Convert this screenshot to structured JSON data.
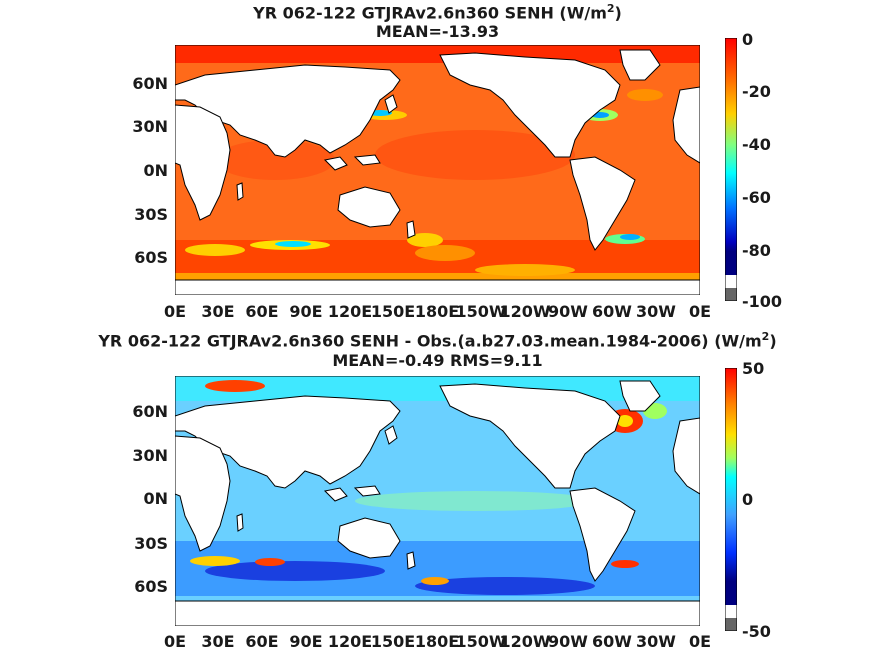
{
  "top": {
    "title_prefix": "YR 062-122 GTJRAv2.6n360  SENH (W/m",
    "title_sup": "2",
    "title_suffix": ")",
    "stat": "MEAN=-13.93",
    "colorbar_ticks": [
      "0",
      "-20",
      "-40",
      "-60",
      "-80",
      "-100"
    ]
  },
  "bottom": {
    "title_prefix": "YR 062-122 GTJRAv2.6n360 SENH - Obs.(a.b27.03.mean.1984-2006) (W/m",
    "title_sup": "2",
    "title_suffix": ")",
    "stat": "MEAN=-0.49 RMS=9.11",
    "colorbar_ticks": [
      "50",
      "0",
      "-50"
    ]
  },
  "axes": {
    "lat_ticks": [
      "60N",
      "30N",
      "0N",
      "30S",
      "60S"
    ],
    "lon_ticks": [
      "0E",
      "30E",
      "60E",
      "90E",
      "120E",
      "150E",
      "180E",
      "150W",
      "120W",
      "90W",
      "60W",
      "30W",
      "0E"
    ]
  }
}
